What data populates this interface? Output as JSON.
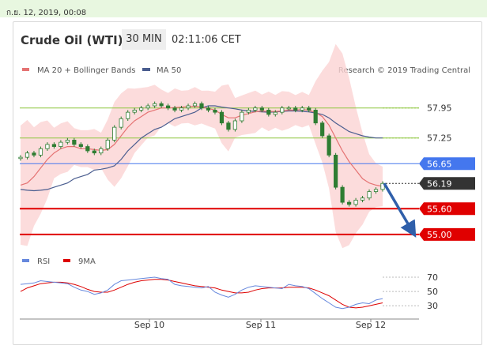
{
  "timestamp": "ก.ย. 12, 2019, 00:08",
  "header": {
    "title": "Crude Oil (WTI)",
    "timeframe": "30 MIN",
    "time": "02:11:06 CET"
  },
  "legend": {
    "ma20": "MA 20 + Bollinger Bands",
    "ma50": "MA 50",
    "credit": "Research © 2019 Trading Central"
  },
  "rsi_legend": {
    "rsi": "RSI",
    "ma9": "9MA"
  },
  "colors": {
    "candle": "#2e7d32",
    "ma20": "#e57373",
    "ma50": "#4a5d8f",
    "band": "#fbd3d3",
    "support": "#e00000",
    "pivot": "#4477ee",
    "resistance": "#8dc63f",
    "current": "#333333",
    "arrow": "#2f5faa",
    "rsi": "#6688dd",
    "rsi_ma": "#dd0000"
  },
  "chart_data": [
    {
      "type": "line",
      "title": "Crude Oil (WTI)",
      "timeframe": "30 MIN",
      "x_labels": [
        "Sep 10",
        "Sep 11",
        "Sep 12"
      ],
      "ylim": [
        54.85,
        58.35
      ],
      "price_series": [
        56.8,
        56.9,
        56.85,
        57.0,
        57.1,
        57.05,
        57.15,
        57.2,
        57.1,
        57.05,
        56.95,
        56.9,
        57.0,
        57.2,
        57.5,
        57.7,
        57.85,
        57.9,
        57.95,
        58.0,
        58.05,
        58.0,
        57.95,
        57.9,
        57.95,
        58.0,
        58.05,
        57.95,
        57.9,
        57.85,
        57.6,
        57.45,
        57.65,
        57.85,
        57.9,
        57.95,
        57.9,
        57.8,
        57.85,
        57.95,
        57.95,
        57.9,
        57.95,
        57.9,
        57.6,
        57.3,
        56.85,
        56.1,
        55.75,
        55.7,
        55.8,
        55.85,
        56.0,
        56.05,
        56.19
      ],
      "series": [
        {
          "name": "MA 20 + Bollinger Bands",
          "values": [
            56.15,
            56.2,
            56.35,
            56.55,
            56.75,
            56.9,
            57.0,
            57.05,
            57.05,
            57.0,
            57.0,
            56.98,
            56.96,
            56.98,
            57.1,
            57.3,
            57.5,
            57.65,
            57.75,
            57.85,
            57.9,
            57.95,
            57.95,
            57.96,
            57.97,
            57.98,
            57.99,
            57.97,
            57.94,
            57.9,
            57.8,
            57.72,
            57.72,
            57.78,
            57.82,
            57.86,
            57.88,
            57.87,
            57.87,
            57.88,
            57.9,
            57.9,
            57.91,
            57.9,
            57.84,
            57.75,
            57.55,
            57.25,
            56.95,
            56.7,
            56.5,
            56.3,
            56.2,
            56.15,
            56.12
          ]
        },
        {
          "name": "MA 50",
          "values": [
            56.05,
            56.03,
            56.02,
            56.03,
            56.05,
            56.1,
            56.15,
            56.2,
            56.3,
            56.35,
            56.4,
            56.5,
            56.52,
            56.55,
            56.6,
            56.75,
            56.95,
            57.1,
            57.25,
            57.35,
            57.45,
            57.5,
            57.6,
            57.7,
            57.75,
            57.8,
            57.85,
            57.95,
            58.0,
            58.0,
            57.97,
            57.95,
            57.93,
            57.9,
            57.88,
            57.87,
            57.86,
            57.85,
            57.86,
            57.87,
            57.88,
            57.88,
            57.87,
            57.86,
            57.83,
            57.8,
            57.72,
            57.6,
            57.5,
            57.4,
            57.35,
            57.3,
            57.27,
            57.25,
            57.25
          ]
        }
      ],
      "levels": [
        {
          "label": "57.95",
          "value": 57.95,
          "kind": "resistance"
        },
        {
          "label": "57.25",
          "value": 57.25,
          "kind": "resistance"
        },
        {
          "label": "56.65",
          "value": 56.65,
          "kind": "pivot"
        },
        {
          "label": "56.19",
          "value": 56.19,
          "kind": "current"
        },
        {
          "label": "55.60",
          "value": 55.6,
          "kind": "support"
        },
        {
          "label": "55.00",
          "value": 55.0,
          "kind": "support"
        }
      ]
    },
    {
      "type": "line",
      "ylim": [
        18,
        80
      ],
      "y_ticks": [
        70,
        50,
        30
      ],
      "series": [
        {
          "name": "RSI",
          "values": [
            60,
            61,
            62,
            65,
            64,
            63,
            62,
            61,
            56,
            52,
            50,
            46,
            48,
            52,
            60,
            65,
            66,
            67,
            68,
            69,
            70,
            68,
            67,
            60,
            58,
            57,
            56,
            55,
            57,
            49,
            45,
            42,
            46,
            52,
            56,
            58,
            57,
            56,
            55,
            54,
            60,
            58,
            57,
            54,
            47,
            40,
            34,
            28,
            26,
            28,
            32,
            34,
            33,
            38,
            40
          ]
        },
        {
          "name": "9MA",
          "values": [
            50,
            55,
            58,
            61,
            62,
            63,
            63,
            62,
            60,
            57,
            53,
            50,
            49,
            49,
            52,
            56,
            60,
            63,
            65,
            66,
            67,
            67,
            66,
            64,
            62,
            60,
            58,
            57,
            56,
            55,
            52,
            50,
            48,
            48,
            49,
            52,
            54,
            55,
            55,
            55,
            56,
            56,
            56,
            55,
            52,
            48,
            44,
            38,
            32,
            28,
            27,
            28,
            30,
            32,
            34
          ]
        }
      ]
    }
  ]
}
